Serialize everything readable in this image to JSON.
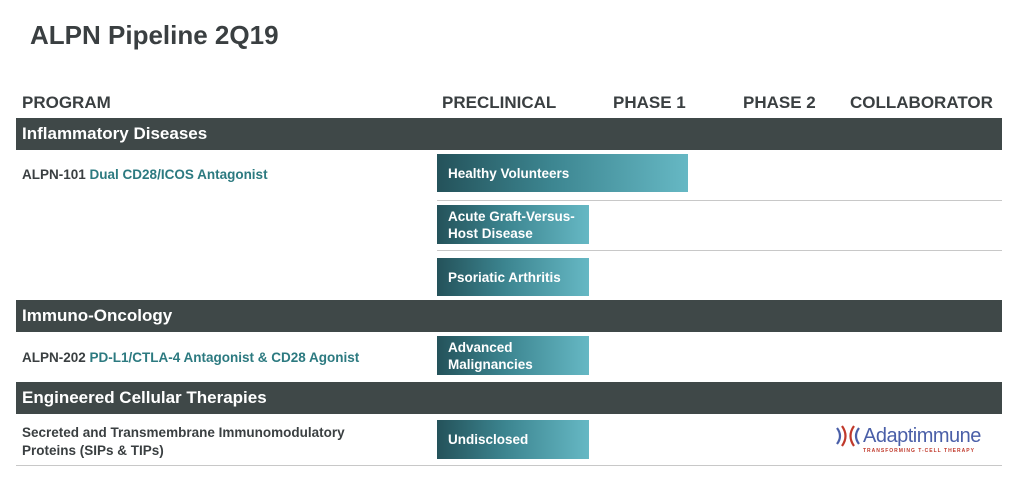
{
  "title": "ALPN Pipeline 2Q19",
  "headers": {
    "program": "PROGRAM",
    "preclinical": "PRECLINICAL",
    "phase1": "PHASE 1",
    "phase2": "PHASE 2",
    "collaborator": "COLLABORATOR"
  },
  "sections": [
    {
      "label": "Inflammatory Diseases"
    },
    {
      "label": "Immuno-Oncology"
    },
    {
      "label": "Engineered Cellular Therapies"
    }
  ],
  "programs": [
    {
      "code": "ALPN-101",
      "desc": "Dual CD28/ICOS Antagonist"
    },
    {
      "code": "ALPN-202",
      "desc": "PD-L1/CTLA-4 Antagonist & CD28 Agonist"
    },
    {
      "code": "Secreted and Transmembrane Immunomodulatory",
      "desc": "Proteins (SIPs & TIPs)"
    }
  ],
  "indications": [
    {
      "label": "Healthy Volunteers",
      "stage": "Phase 1"
    },
    {
      "label": "Acute Graft-Versus-Host Disease",
      "stage": "Preclinical"
    },
    {
      "label": "Psoriatic Arthritis",
      "stage": "Preclinical"
    },
    {
      "label": "Advanced Malignancies",
      "stage": "Preclinical"
    },
    {
      "label": "Undisclosed",
      "stage": "Preclinical"
    }
  ],
  "collaborator": {
    "name": "Adaptimmune",
    "tagline": "TRANSFORMING T-CELL THERAPY"
  },
  "colors": {
    "section_bg": "#3f4848",
    "accent_text": "#2c7a80",
    "bar_start": "#24525a",
    "bar_end": "#66b8c4"
  }
}
